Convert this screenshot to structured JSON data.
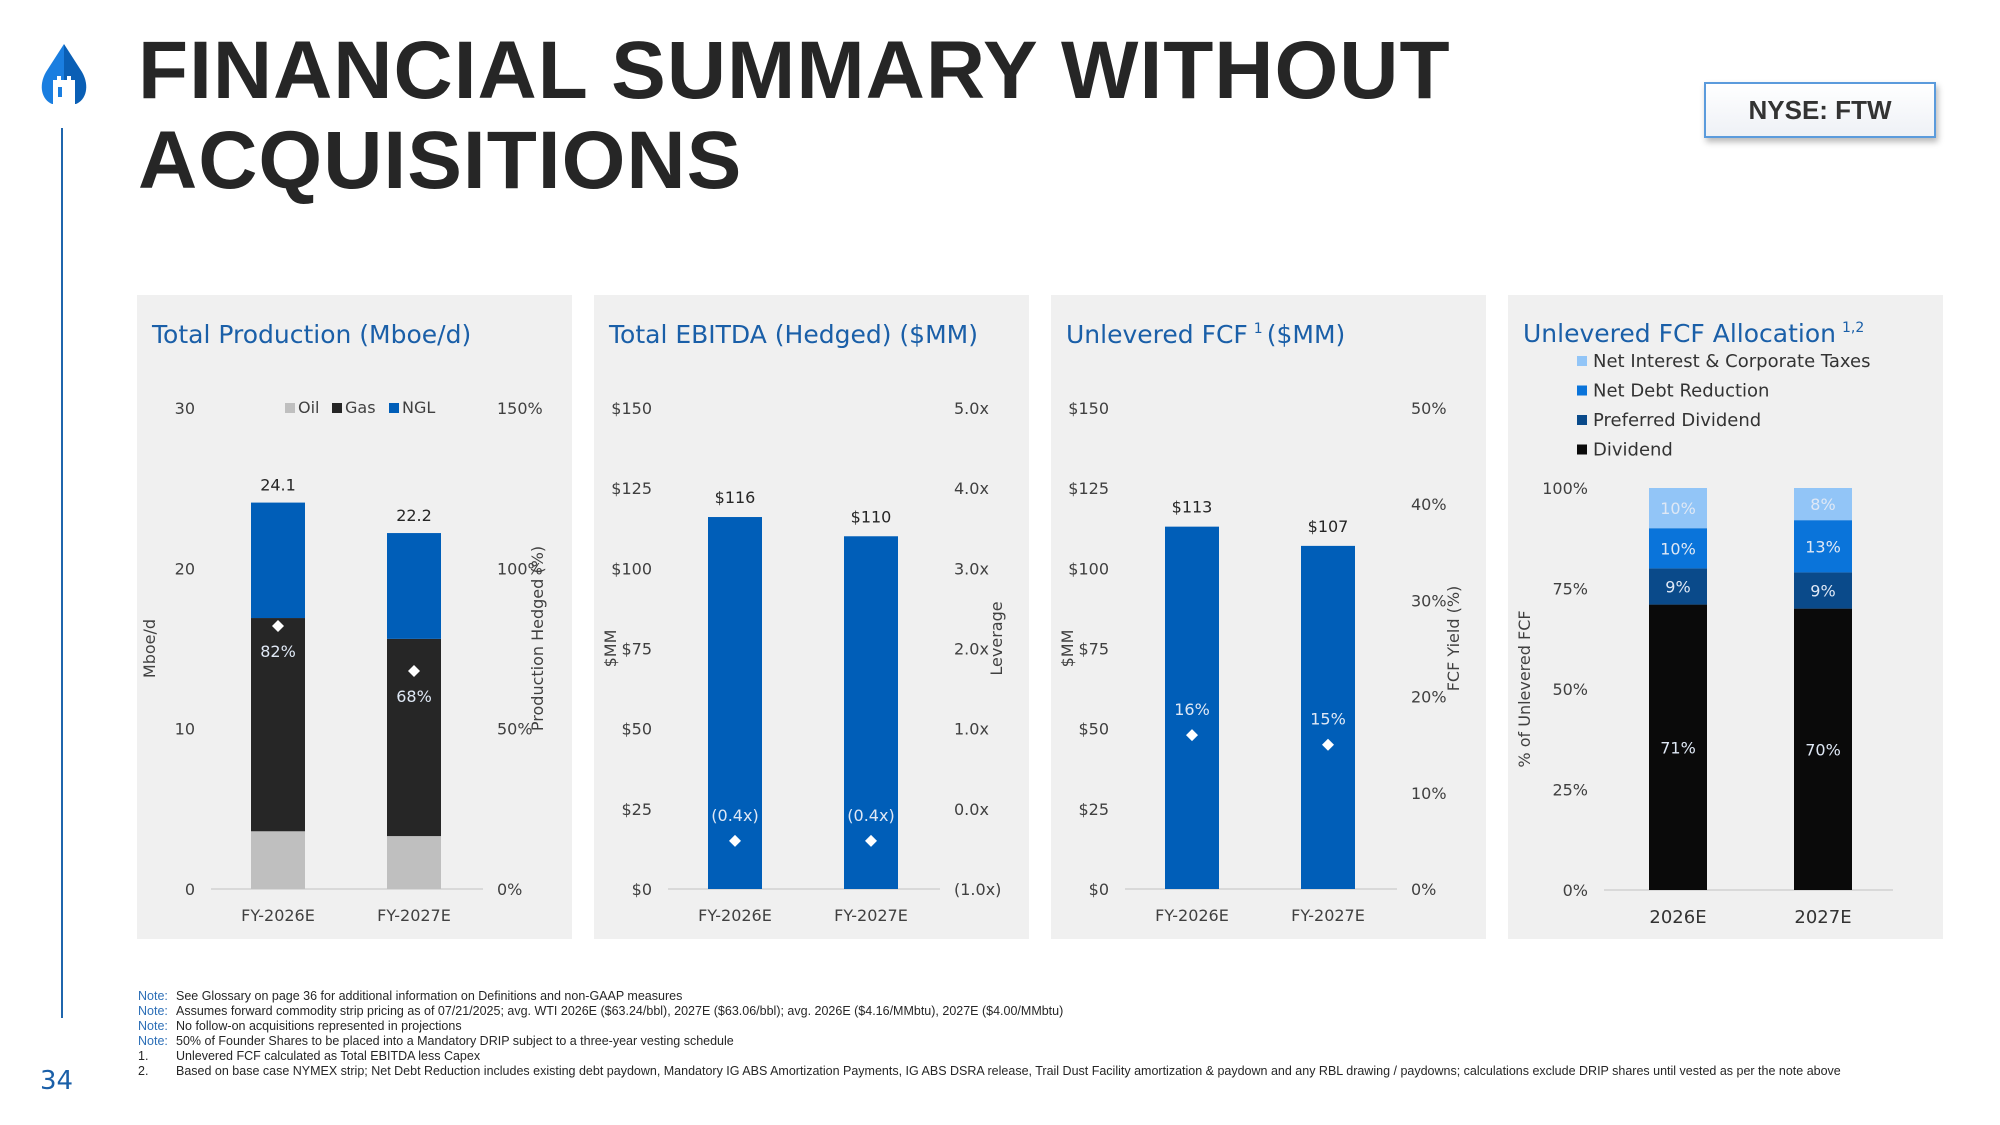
{
  "header": {
    "title_line1": "FINANCIAL SUMMARY WITHOUT",
    "title_line2": "ACQUISITIONS",
    "ticker": "NYSE: FTW",
    "logo_icon": "drop-castle-logo-icon",
    "page_number": "34"
  },
  "colors": {
    "brand_blue": "#1a5fa8",
    "bar_blue": "#005eb8",
    "oil": "#bfbfbf",
    "gas": "#262626",
    "ngl": "#005eb8",
    "net_interest": "#92c5f7",
    "net_debt": "#0a74da",
    "preferred": "#0a4a8a",
    "dividend": "#0a0a0a"
  },
  "chart_data": [
    {
      "type": "bar",
      "stacked": true,
      "title": "Total Production (Mboe/d)",
      "categories": [
        "FY-2026E",
        "FY-2027E"
      ],
      "series": [
        {
          "name": "Oil",
          "values": [
            3.6,
            3.3
          ]
        },
        {
          "name": "Gas",
          "values": [
            13.3,
            12.3
          ]
        },
        {
          "name": "NGL",
          "values": [
            7.2,
            6.6
          ]
        }
      ],
      "totals": [
        24.1,
        22.2
      ],
      "total_labels": [
        "24.1",
        "22.2"
      ],
      "secondary": {
        "name": "Production Hedged (%)",
        "type": "scatter",
        "marker": "diamond",
        "values": [
          82,
          68
        ],
        "labels": [
          "82%",
          "68%"
        ]
      },
      "ylabel": "Mboe/d",
      "y2label": "Production Hedged (%)",
      "ylim": [
        0,
        30
      ],
      "yticks": [
        "0",
        "10",
        "20",
        "30"
      ],
      "y2lim": [
        0,
        150
      ],
      "y2ticks": [
        "0%",
        "50%",
        "100%",
        "150%"
      ],
      "legend": [
        "Oil",
        "Gas",
        "NGL"
      ],
      "legend_position": "top-center",
      "grid": false
    },
    {
      "type": "bar",
      "title": "Total EBITDA (Hedged) ($MM)",
      "categories": [
        "FY-2026E",
        "FY-2027E"
      ],
      "values": [
        116,
        110
      ],
      "value_labels": [
        "$116",
        "$110"
      ],
      "secondary": {
        "name": "Leverage",
        "type": "scatter",
        "marker": "diamond",
        "values": [
          -0.4,
          -0.4
        ],
        "labels": [
          "(0.4x)",
          "(0.4x)"
        ]
      },
      "ylabel": "$MM",
      "y2label": "Leverage",
      "ylim": [
        0,
        150
      ],
      "yticks": [
        "$0",
        "$25",
        "$50",
        "$75",
        "$100",
        "$125",
        "$150"
      ],
      "y2lim": [
        -1,
        5
      ],
      "y2ticks": [
        "(1.0x)",
        "0.0x",
        "1.0x",
        "2.0x",
        "3.0x",
        "4.0x",
        "5.0x"
      ],
      "grid": false
    },
    {
      "type": "bar",
      "title": "Unlevered FCF",
      "title_sup": "1",
      "title_suffix": "($MM)",
      "categories": [
        "FY-2026E",
        "FY-2027E"
      ],
      "values": [
        113,
        107
      ],
      "value_labels": [
        "$113",
        "$107"
      ],
      "secondary": {
        "name": "FCF Yield (%)",
        "type": "scatter",
        "marker": "diamond",
        "values": [
          16,
          15
        ],
        "labels": [
          "16%",
          "15%"
        ]
      },
      "ylabel": "$MM",
      "y2label": "FCF Yield (%)",
      "ylim": [
        0,
        150
      ],
      "yticks": [
        "$0",
        "$25",
        "$50",
        "$75",
        "$100",
        "$125",
        "$150"
      ],
      "y2lim": [
        0,
        50
      ],
      "y2ticks": [
        "0%",
        "10%",
        "20%",
        "30%",
        "40%",
        "50%"
      ],
      "grid": false
    },
    {
      "type": "bar",
      "stacked": true,
      "title": "Unlevered FCF Allocation",
      "title_sup": "1,2",
      "categories": [
        "2026E",
        "2027E"
      ],
      "series": [
        {
          "name": "Dividend",
          "values": [
            71,
            70
          ],
          "labels": [
            "71%",
            "70%"
          ]
        },
        {
          "name": "Preferred Dividend",
          "values": [
            9,
            9
          ],
          "labels": [
            "9%",
            "9%"
          ]
        },
        {
          "name": "Net Debt Reduction",
          "values": [
            10,
            13
          ],
          "labels": [
            "10%",
            "13%"
          ]
        },
        {
          "name": "Net Interest & Corporate Taxes",
          "values": [
            10,
            8
          ],
          "labels": [
            "10%",
            "8%"
          ]
        }
      ],
      "legend": [
        "Net Interest & Corporate Taxes",
        "Net Debt Reduction",
        "Preferred Dividend",
        "Dividend"
      ],
      "legend_position": "top",
      "ylabel": "% of Unlevered FCF",
      "ylim": [
        0,
        100
      ],
      "yticks": [
        "0%",
        "25%",
        "50%",
        "75%",
        "100%"
      ],
      "grid": false
    }
  ],
  "footnotes": [
    {
      "tag": "Note:",
      "text": "See Glossary on page 36 for additional information on Definitions and non-GAAP measures"
    },
    {
      "tag": "Note:",
      "text": "Assumes forward commodity strip pricing as of 07/21/2025; avg. WTI 2026E ($63.24/bbl), 2027E ($63.06/bbl); avg. 2026E ($4.16/MMbtu), 2027E ($4.00/MMbtu)"
    },
    {
      "tag": "Note:",
      "text": "No follow-on acquisitions represented in projections"
    },
    {
      "tag": "Note:",
      "text": "50% of Founder Shares to be placed into a Mandatory DRIP subject to a three-year vesting schedule"
    },
    {
      "tag": "1.",
      "text": "Unlevered FCF calculated as Total EBITDA less Capex"
    },
    {
      "tag": "2.",
      "text": "Based on base case NYMEX strip; Net Debt Reduction includes existing debt paydown, Mandatory IG ABS Amortization Payments, IG ABS DSRA release, Trail Dust Facility amortization & paydown and any RBL drawing / paydowns; calculations exclude DRIP shares until vested as per the note above"
    }
  ]
}
